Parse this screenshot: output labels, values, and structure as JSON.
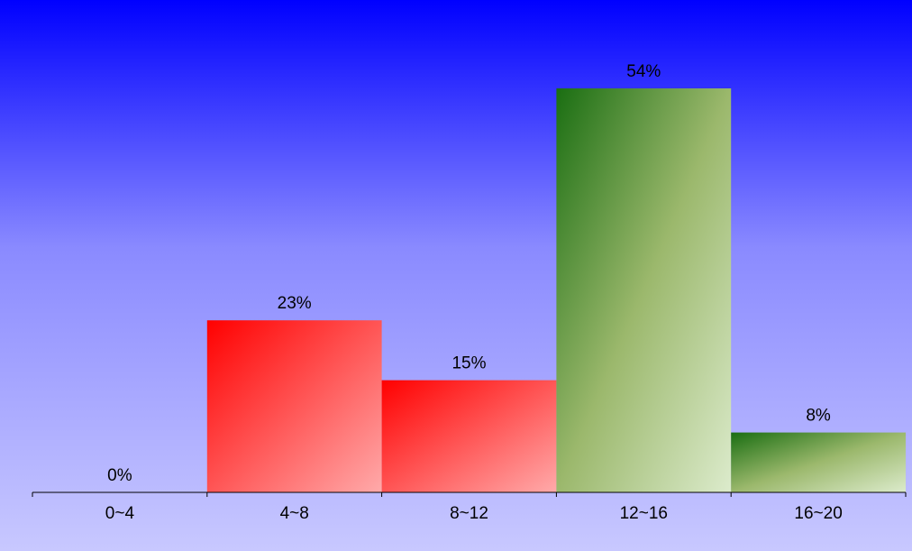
{
  "chart_data": {
    "type": "bar",
    "categories": [
      "0~4",
      "4~8",
      "8~12",
      "12~16",
      "16~20"
    ],
    "values": [
      0,
      23,
      15,
      54,
      8
    ],
    "value_labels": [
      "0%",
      "23%",
      "15%",
      "54%",
      "8%"
    ],
    "series_colors": [
      "red",
      "red",
      "red",
      "green",
      "green"
    ],
    "title": "",
    "xlabel": "",
    "ylabel": "",
    "ylim": [
      0,
      54
    ],
    "grid": false,
    "legend": "none"
  },
  "colors": {
    "background_top": "#0000ff",
    "background_bottom": "#c8c8ff",
    "red_start": "#ff0000",
    "red_end": "#ffaaaa",
    "green_start": "#1a6e12",
    "green_mid": "#9bb86c",
    "green_end": "#dcebcc",
    "axis": "#000000"
  }
}
